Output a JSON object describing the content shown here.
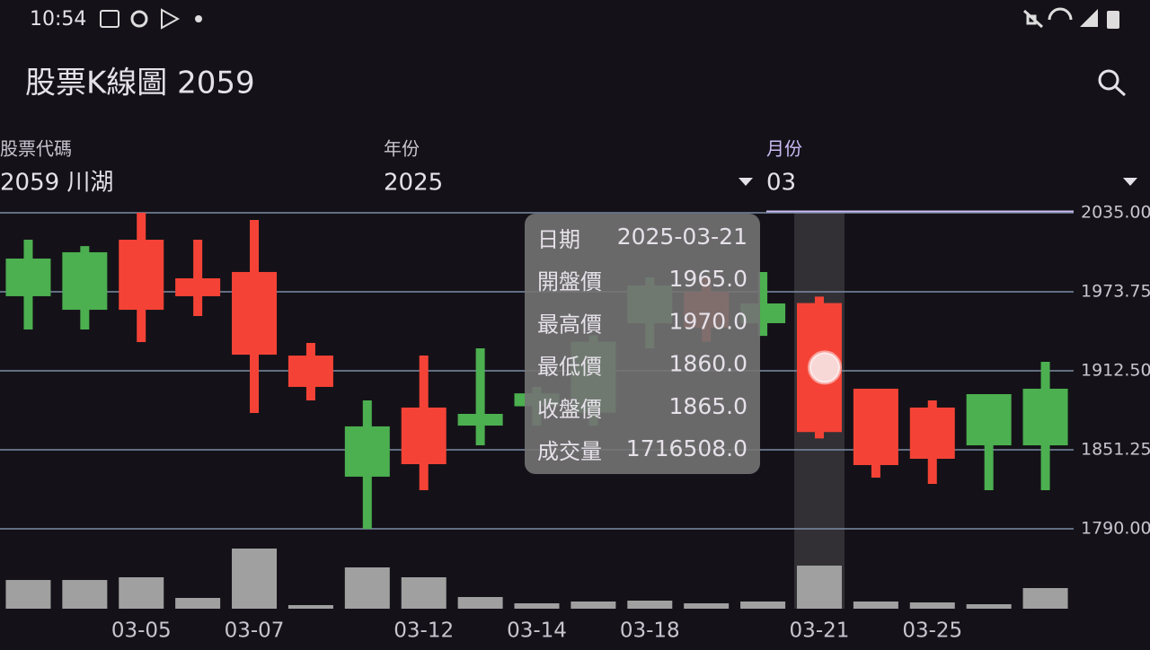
{
  "status_bar": {
    "time": "10:54"
  },
  "app_bar": {
    "title": "股票K線圖 2059"
  },
  "fields": [
    {
      "label": "股票代碼",
      "value": "2059 川湖"
    },
    {
      "label": "年份",
      "value": "2025"
    },
    {
      "label": "月份",
      "value": "03"
    }
  ],
  "tooltip": {
    "rows": [
      [
        "日期",
        "2025-03-21"
      ],
      [
        "開盤價",
        "1965.0"
      ],
      [
        "最高價",
        "1970.0"
      ],
      [
        "最低價",
        "1860.0"
      ],
      [
        "收盤價",
        "1865.0"
      ],
      [
        "成交量",
        "1716508.0"
      ]
    ]
  },
  "chart_data": {
    "type": "candlestick",
    "categories": [
      null,
      null,
      "03-05",
      null,
      "03-07",
      null,
      null,
      "03-12",
      null,
      "03-14",
      null,
      "03-18",
      null,
      null,
      "03-21",
      null,
      "03-25",
      null,
      null
    ],
    "open": [
      1970.3,
      1959.8,
      2014.1,
      1984.2,
      1989.1,
      1924.3,
      1830.4,
      1884.0,
      1870.0,
      1885,
      1880,
      1949.4,
      1973.8,
      1949.4,
      1965,
      1898.6,
      1884.0,
      1854.7,
      1854.7
    ],
    "high": [
      2014.1,
      2009.2,
      2035,
      2014.1,
      2029.4,
      1934.1,
      1889.5,
      1924.3,
      1929.9,
      1900,
      1940,
      1985,
      1985,
      1989.1,
      1970,
      1898.6,
      1889.5,
      1894.4,
      1919.5
    ],
    "low": [
      1944.5,
      1944.5,
      1934.8,
      1955.0,
      1879.8,
      1889.5,
      1790,
      1819.9,
      1854.7,
      1870,
      1870,
      1929.9,
      1935,
      1939.6,
      1860,
      1829.7,
      1824.8,
      1819.9,
      1819.9
    ],
    "close": [
      1999.5,
      2004.4,
      1959.8,
      1970.3,
      1925.0,
      1900.0,
      1869.4,
      1840.1,
      1879.1,
      1895,
      1935,
      1978.6,
      1945.9,
      1964.7,
      1865,
      1839.4,
      1844.3,
      1894.4,
      1898.6
    ],
    "volume": [
      1144000,
      1144000,
      1252000,
      429000,
      2396000,
      143000,
      1645000,
      1252000,
      465000,
      215000,
      286000,
      322000,
      215000,
      286000,
      1716508,
      286000,
      250000,
      179000,
      822000
    ],
    "up_color": "#4caf50",
    "down_color": "#f44336",
    "volume_color": "#a0a0a0",
    "ylim": [
      1790,
      2035
    ],
    "yticks": [
      {
        "value": 1790,
        "label": "1790.00"
      },
      {
        "value": 1851.25,
        "label": "1851.25"
      },
      {
        "value": 1912.5,
        "label": "1912.50"
      },
      {
        "value": 1973.75,
        "label": "1973.75"
      },
      {
        "value": 2035,
        "label": "2035.00"
      }
    ],
    "grid": true,
    "selected_index": 14
  }
}
